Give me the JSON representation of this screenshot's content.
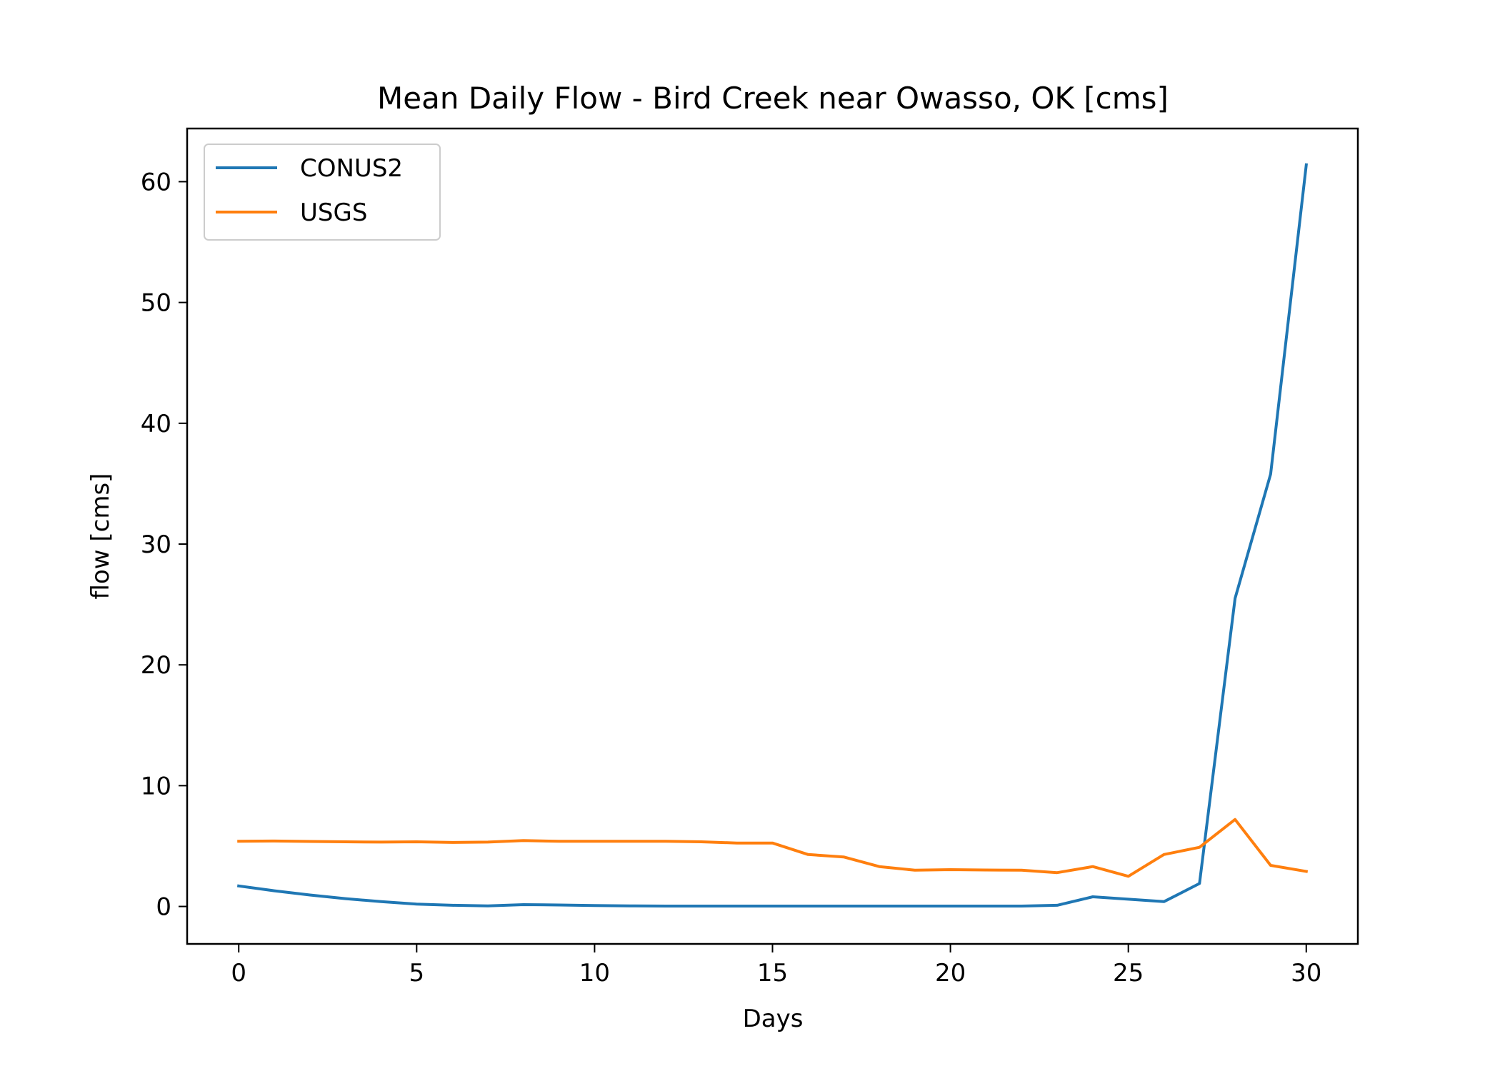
{
  "chart_data": {
    "type": "line",
    "title": "Mean Daily Flow - Bird Creek near Owasso, OK [cms]",
    "xlabel": "Days",
    "ylabel": "flow [cms]",
    "xlim": [
      -1.45,
      31.45
    ],
    "ylim": [
      -3.1,
      64.4
    ],
    "xticks": [
      0,
      5,
      10,
      15,
      20,
      25,
      30
    ],
    "yticks": [
      0,
      10,
      20,
      30,
      40,
      50,
      60
    ],
    "grid": false,
    "legend": "top-left",
    "x": [
      0,
      1,
      2,
      3,
      4,
      5,
      6,
      7,
      8,
      9,
      10,
      11,
      12,
      13,
      14,
      15,
      16,
      17,
      18,
      19,
      20,
      21,
      22,
      23,
      24,
      25,
      26,
      27,
      28,
      29,
      30
    ],
    "series": [
      {
        "name": "CONUS2",
        "color": "#1f77b4",
        "values": [
          1.7,
          1.3,
          0.95,
          0.65,
          0.4,
          0.2,
          0.1,
          0.05,
          0.15,
          0.12,
          0.08,
          0.05,
          0.03,
          0.03,
          0.03,
          0.03,
          0.03,
          0.03,
          0.03,
          0.03,
          0.03,
          0.03,
          0.03,
          0.1,
          0.8,
          0.6,
          0.4,
          1.9,
          25.5,
          35.8,
          61.4
        ]
      },
      {
        "name": "USGS",
        "color": "#ff7f0e",
        "values": [
          5.4,
          5.42,
          5.38,
          5.35,
          5.33,
          5.35,
          5.3,
          5.33,
          5.45,
          5.4,
          5.4,
          5.4,
          5.4,
          5.35,
          5.25,
          5.25,
          4.3,
          4.1,
          3.3,
          3.0,
          3.05,
          3.02,
          3.0,
          2.8,
          3.3,
          2.5,
          4.3,
          4.9,
          7.2,
          3.4,
          2.9
        ]
      }
    ]
  }
}
